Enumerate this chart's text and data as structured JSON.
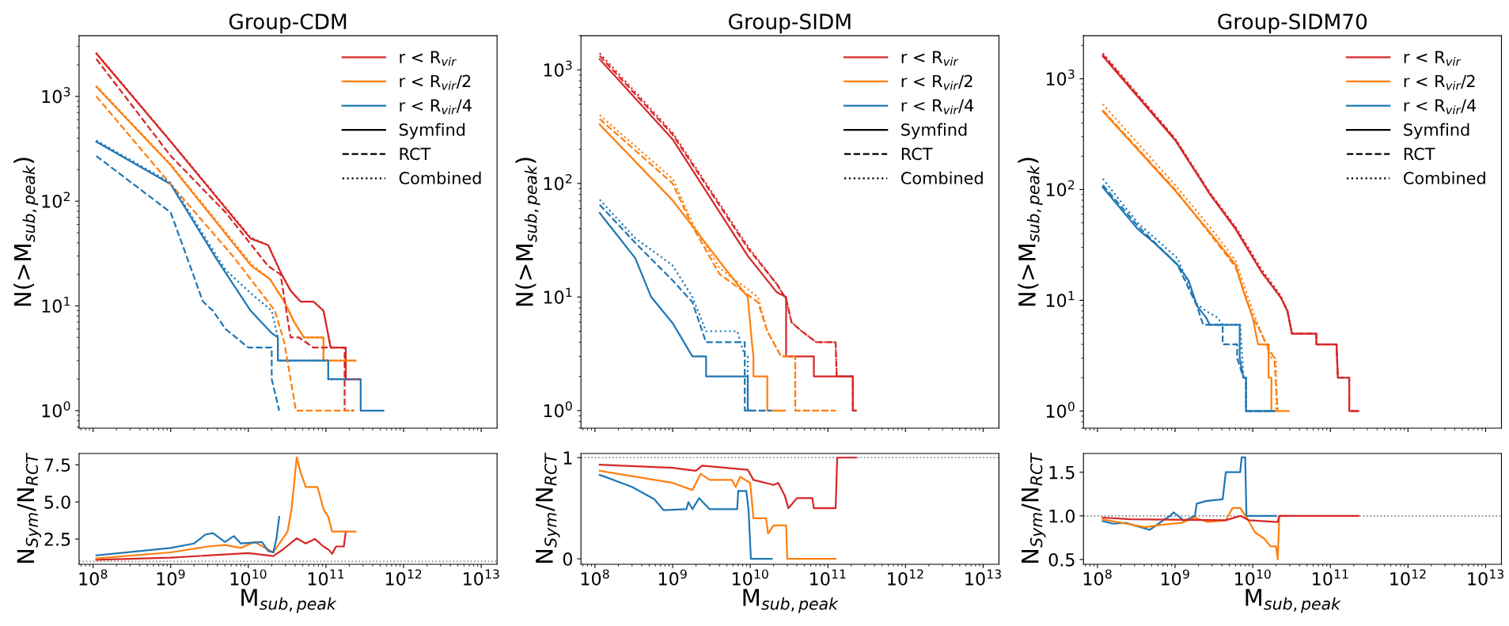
{
  "chart_data": [
    {
      "type": "line",
      "title": "Group-CDM",
      "ylabel": "N(>M$_{sub,peak}$)",
      "log": "xy",
      "legend": "top right",
      "grid": false,
      "tick_labels": "y",
      "xlim": [
        66000000.0,
        16000000000000.0
      ],
      "xticks": [
        {
          "value": 100000000.0,
          "label": null
        },
        {
          "value": 1000000000.0,
          "label": null
        },
        {
          "value": 10000000000.0,
          "label": null
        },
        {
          "value": 100000000000.0,
          "label": null
        },
        {
          "value": 1000000000000.0,
          "label": null
        },
        {
          "value": 10000000000000.0,
          "label": null
        }
      ],
      "ylim": [
        0.68,
        3800
      ],
      "yticks": [
        {
          "value": 1,
          "label": "10$^{0}$"
        },
        {
          "value": 10,
          "label": "10$^{1}$"
        },
        {
          "value": 100,
          "label": "10$^{2}$"
        },
        {
          "value": 1000,
          "label": "10$^{3}$"
        }
      ],
      "series": [
        {
          "name": "r < R$_{vir}$",
          "color": "#d62728",
          "line_style": "solid",
          "x": [
            110000000.0,
            1000000000.0,
            10700000000.0,
            18000000000.0,
            26000000000.0,
            35000000000.0,
            47000000000.0,
            69000000000.0,
            93000000000.0,
            115000000000.0,
            180000000000.0,
            180000000000.0,
            260000000000.0
          ],
          "values": [
            2570,
            370,
            44,
            38,
            21,
            14,
            11,
            11,
            9,
            4,
            4,
            2,
            2
          ]
        },
        {
          "name": "r < R$_{vir}$/2",
          "color": "#ff7f0e",
          "line_style": "solid",
          "x": [
            110000000.0,
            1000000000.0,
            11000000000.0,
            19000000000.0,
            29000000000.0,
            39000000000.0,
            52000000000.0,
            93000000000.0,
            93000000000.0,
            240000000000.0
          ],
          "values": [
            1240,
            220,
            24,
            18,
            11,
            7,
            5,
            5,
            3,
            3
          ]
        },
        {
          "name": "r < R$_{vir}$/4",
          "color": "#1f77b4",
          "line_style": "solid",
          "x": [
            110000000.0,
            1000000000.0,
            3900000000.0,
            10700000000.0,
            20000000000.0,
            24000000000.0,
            24000000000.0,
            107000000000.0,
            107000000000.0,
            280000000000.0,
            280000000000.0,
            550000000000.0
          ],
          "values": [
            370,
            145,
            28,
            9,
            5.5,
            5,
            3,
            3,
            2,
            2,
            1,
            1
          ]
        },
        {
          "name": "Symfind",
          "color": "#000000",
          "line_style": "solid"
        },
        {
          "name": "RCT",
          "color": "#000000",
          "line_style": "dashed"
        },
        {
          "name": "Combined",
          "color": "#000000",
          "line_style": "dotted"
        },
        {
          "color": "#d62728",
          "line_style": "dashed",
          "x": [
            110000000.0,
            1000000000.0,
            5100000000.0,
            18000000000.0,
            26000000000.0,
            29000000000.0,
            35000000000.0,
            45000000000.0,
            69000000000.0,
            174000000000.0,
            174000000000.0,
            230000000000.0
          ],
          "values": [
            2280,
            270,
            78,
            24,
            20,
            12,
            5,
            5,
            4,
            4,
            1,
            1
          ]
        },
        {
          "color": "#d62728",
          "line_style": "dotted",
          "x": [
            110000000.0,
            1000000000.0,
            10700000000.0,
            18000000000.0,
            26000000000.0,
            35000000000.0,
            47000000000.0,
            69000000000.0,
            93000000000.0,
            115000000000.0,
            180000000000.0,
            180000000000.0,
            270000000000.0
          ],
          "values": [
            2600,
            375,
            45,
            38,
            21,
            14,
            11,
            11,
            9,
            4,
            4,
            2,
            2
          ]
        },
        {
          "color": "#ff7f0e",
          "line_style": "dashed",
          "x": [
            110000000.0,
            1000000000.0,
            6300000000.0,
            22000000000.0,
            29000000000.0,
            35000000000.0,
            41000000000.0,
            230000000000.0
          ],
          "values": [
            1000,
            145,
            30,
            9,
            4.5,
            2,
            1,
            1
          ]
        },
        {
          "color": "#ff7f0e",
          "line_style": "dotted",
          "x": [
            110000000.0,
            1000000000.0,
            11000000000.0,
            19000000000.0,
            29000000000.0,
            39000000000.0,
            52000000000.0,
            93000000000.0,
            93000000000.0,
            240000000000.0
          ],
          "values": [
            1260,
            225,
            25,
            18,
            11,
            7,
            5,
            5,
            3,
            3
          ]
        },
        {
          "color": "#1f77b4",
          "line_style": "dashed",
          "x": [
            110000000.0,
            1000000000.0,
            2600000000.0,
            3500000000.0,
            5100000000.0,
            10000000000.0,
            20000000000.0,
            20000000000.0,
            25000000000.0
          ],
          "values": [
            270,
            78,
            11,
            9,
            6,
            4,
            4,
            2,
            1
          ]
        },
        {
          "color": "#1f77b4",
          "line_style": "dotted",
          "x": [
            110000000.0,
            1000000000.0,
            5100000000.0,
            11000000000.0,
            20000000000.0,
            24000000000.0,
            24000000000.0,
            107000000000.0,
            107000000000.0,
            280000000000.0
          ],
          "values": [
            380,
            150,
            22,
            13,
            9,
            5,
            3,
            3,
            2,
            2
          ]
        }
      ]
    },
    {
      "type": "line",
      "title": "Group-SIDM",
      "ylabel": "N(>M$_{sub,peak}$)",
      "log": "xy",
      "legend": "top right",
      "grid": false,
      "tick_labels": "y",
      "xlim": [
        66000000.0,
        16000000000000.0
      ],
      "xticks": [
        {
          "value": 100000000.0,
          "label": null
        },
        {
          "value": 1000000000.0,
          "label": null
        },
        {
          "value": 10000000000.0,
          "label": null
        },
        {
          "value": 100000000000.0,
          "label": null
        },
        {
          "value": 1000000000000.0,
          "label": null
        },
        {
          "value": 10000000000000.0,
          "label": null
        }
      ],
      "ylim": [
        0.7,
        2000
      ],
      "yticks": [
        {
          "value": 1,
          "label": "10$^{0}$"
        },
        {
          "value": 10,
          "label": "10$^{1}$"
        },
        {
          "value": 100,
          "label": "10$^{2}$"
        },
        {
          "value": 1000,
          "label": "10$^{3}$"
        }
      ],
      "series": [
        {
          "name": "r < R$_{vir}$",
          "color": "#d62728",
          "line_style": "solid",
          "x": [
            115000000.0,
            1000000000.0,
            9300000000.0,
            16600000000.0,
            22000000000.0,
            29000000000.0,
            29000000000.0,
            66000000000.0,
            66000000000.0,
            210000000000.0,
            210000000000.0,
            230000000000.0
          ],
          "values": [
            1240,
            245,
            23,
            14,
            11,
            10,
            3,
            3,
            2,
            2,
            1,
            1
          ]
        },
        {
          "name": "r < R$_{vir}$/2",
          "color": "#ff7f0e",
          "line_style": "solid",
          "x": [
            115000000.0,
            1000000000.0,
            5000000000.0,
            9300000000.0,
            10500000000.0,
            11000000000.0,
            11000000000.0,
            16600000000.0,
            16600000000.0,
            28000000000.0
          ],
          "values": [
            330,
            71,
            17,
            10,
            4,
            3,
            2,
            2,
            1,
            1
          ]
        },
        {
          "name": "r < R$_{vir}$/4",
          "color": "#1f77b4",
          "line_style": "solid",
          "x": [
            115000000.0,
            330000000.0,
            530000000.0,
            1000000000.0,
            1800000000.0,
            2700000000.0,
            2700000000.0,
            9300000000.0,
            9300000000.0,
            10000000000.0
          ],
          "values": [
            55,
            22,
            10,
            5.9,
            3,
            3,
            2,
            2,
            1,
            1
          ]
        },
        {
          "name": "Symfind",
          "color": "#000000",
          "line_style": "solid"
        },
        {
          "name": "RCT",
          "color": "#000000",
          "line_style": "dashed"
        },
        {
          "name": "Combined",
          "color": "#000000",
          "line_style": "dotted"
        },
        {
          "color": "#d62728",
          "line_style": "dashed",
          "x": [
            115000000.0,
            1000000000.0,
            9300000000.0,
            22000000000.0,
            29000000000.0,
            34000000000.0,
            46000000000.0,
            71000000000.0,
            126000000000.0,
            130000000000.0,
            210000000000.0,
            210000000000.0,
            230000000000.0
          ],
          "values": [
            1330,
            270,
            27,
            13,
            9.6,
            6,
            5,
            4,
            4,
            2,
            2,
            1,
            1
          ]
        },
        {
          "color": "#d62728",
          "line_style": "dotted",
          "x": [
            115000000.0,
            1000000000.0,
            9300000000.0,
            22000000000.0,
            29000000000.0,
            34000000000.0,
            46000000000.0,
            71000000000.0,
            126000000000.0,
            130000000000.0,
            210000000000.0,
            210000000000.0
          ],
          "values": [
            1400,
            280,
            28,
            13,
            9.6,
            6,
            5,
            4,
            4,
            2,
            2,
            1
          ]
        },
        {
          "color": "#ff7f0e",
          "line_style": "dashed",
          "x": [
            115000000.0,
            1000000000.0,
            1800000000.0,
            4000000000.0,
            12600000000.0,
            16600000000.0,
            25000000000.0,
            38000000000.0,
            38000000000.0,
            126000000000.0
          ],
          "values": [
            370,
            100,
            42,
            16,
            9,
            5,
            3,
            3,
            1,
            1
          ]
        },
        {
          "color": "#ff7f0e",
          "line_style": "dotted",
          "x": [
            115000000.0,
            1000000000.0,
            1800000000.0,
            4000000000.0,
            12600000000.0,
            16600000000.0,
            25000000000.0,
            38000000000.0,
            38000000000.0,
            126000000000.0
          ],
          "values": [
            400,
            110,
            45,
            18,
            10,
            5,
            3,
            3,
            1,
            1
          ]
        },
        {
          "color": "#1f77b4",
          "line_style": "dashed",
          "x": [
            115000000.0,
            330000000.0,
            1000000000.0,
            1800000000.0,
            2200000000.0,
            2700000000.0,
            8500000000.0,
            8500000000.0,
            19000000000.0
          ],
          "values": [
            65,
            30,
            14,
            9,
            6,
            4,
            4,
            1,
            1
          ]
        },
        {
          "color": "#1f77b4",
          "line_style": "dotted",
          "x": [
            115000000.0,
            330000000.0,
            1000000000.0,
            1800000000.0,
            2700000000.0,
            6800000000.0,
            8500000000.0,
            9300000000.0,
            9300000000.0,
            19000000000.0
          ],
          "values": [
            72,
            33,
            19,
            10,
            5,
            5,
            3,
            3,
            1,
            1
          ]
        }
      ]
    },
    {
      "type": "line",
      "title": "Group-SIDM70",
      "ylabel": "N(>M$_{sub,peak}$)",
      "log": "xy",
      "legend": "top right",
      "grid": false,
      "tick_labels": "y",
      "xlim": [
        66000000.0,
        16000000000000.0
      ],
      "xticks": [
        {
          "value": 100000000.0,
          "label": null
        },
        {
          "value": 1000000000.0,
          "label": null
        },
        {
          "value": 10000000000.0,
          "label": null
        },
        {
          "value": 100000000000.0,
          "label": null
        },
        {
          "value": 1000000000000.0,
          "label": null
        },
        {
          "value": 10000000000000.0,
          "label": null
        }
      ],
      "ylim": [
        0.7,
        2450
      ],
      "yticks": [
        {
          "value": 1,
          "label": "10$^{0}$"
        },
        {
          "value": 10,
          "label": "10$^{1}$"
        },
        {
          "value": 100,
          "label": "10$^{2}$"
        },
        {
          "value": 1000,
          "label": "10$^{3}$"
        }
      ],
      "series": [
        {
          "name": "r < R$_{vir}$",
          "color": "#d62728",
          "line_style": "solid",
          "x": [
            117000000.0,
            1000000000.0,
            2800000000.0,
            6000000000.0,
            13000000000.0,
            23000000000.0,
            28000000000.0,
            32000000000.0,
            66000000000.0,
            66000000000.0,
            120000000000.0,
            125000000000.0,
            175000000000.0,
            175000000000.0,
            230000000000.0
          ],
          "values": [
            1600,
            280,
            91,
            44,
            18,
            10.6,
            8,
            5,
            5,
            4,
            4,
            2,
            2,
            1,
            1
          ]
        },
        {
          "name": "r < R$_{vir}$/2",
          "color": "#ff7f0e",
          "line_style": "solid",
          "x": [
            117000000.0,
            1000000000.0,
            2800000000.0,
            6000000000.0,
            7600000000.0,
            10000000000.0,
            11700000000.0,
            16000000000.0,
            16000000000.0,
            17400000000.0,
            17400000000.0,
            29000000000.0
          ],
          "values": [
            510,
            98,
            41,
            21,
            12,
            7,
            4,
            4,
            2,
            2,
            1,
            1
          ]
        },
        {
          "name": "r < R$_{vir}$/4",
          "color": "#1f77b4",
          "line_style": "solid",
          "x": [
            117000000.0,
            330000000.0,
            540000000.0,
            1070000000.0,
            1500000000.0,
            1900000000.0,
            2500000000.0,
            2800000000.0,
            6800000000.0,
            6800000000.0,
            7600000000.0,
            8200000000.0,
            8200000000.0,
            19000000000.0
          ],
          "values": [
            105,
            44,
            33,
            21,
            15,
            9,
            7,
            6,
            6,
            3,
            2,
            2,
            1,
            1
          ]
        },
        {
          "name": "Symfind",
          "color": "#000000",
          "line_style": "solid"
        },
        {
          "name": "RCT",
          "color": "#000000",
          "line_style": "dashed"
        },
        {
          "name": "Combined",
          "color": "#000000",
          "line_style": "dotted"
        },
        {
          "color": "#d62728",
          "line_style": "dashed",
          "x": [
            117000000.0,
            1000000000.0,
            2800000000.0,
            6000000000.0,
            13000000000.0,
            23000000000.0,
            28000000000.0,
            32000000000.0,
            66000000000.0,
            66000000000.0,
            120000000000.0,
            125000000000.0,
            175000000000.0,
            175000000000.0,
            230000000000.0
          ],
          "values": [
            1650,
            285,
            92,
            45,
            18,
            10.6,
            8,
            5,
            5,
            4,
            4,
            2,
            2,
            1,
            1
          ]
        },
        {
          "color": "#d62728",
          "line_style": "dotted",
          "x": [
            117000000.0,
            1000000000.0,
            2800000000.0,
            6000000000.0,
            13000000000.0,
            23000000000.0,
            28000000000.0,
            32000000000.0,
            66000000000.0,
            66000000000.0,
            120000000000.0,
            125000000000.0,
            175000000000.0
          ],
          "values": [
            1700,
            290,
            94,
            46,
            19,
            11,
            8,
            5,
            5,
            4,
            4,
            2,
            2
          ]
        },
        {
          "color": "#ff7f0e",
          "line_style": "dashed",
          "x": [
            117000000.0,
            1000000000.0,
            2800000000.0,
            6000000000.0,
            10000000000.0,
            13000000000.0,
            15000000000.0,
            19000000000.0,
            19000000000.0,
            21000000000.0
          ],
          "values": [
            520,
            100,
            40,
            20,
            7,
            5,
            4,
            3,
            3,
            1
          ]
        },
        {
          "color": "#ff7f0e",
          "line_style": "dotted",
          "x": [
            117000000.0,
            1000000000.0,
            2800000000.0,
            6000000000.0,
            10000000000.0,
            13000000000.0,
            17400000000.0,
            20000000000.0,
            20000000000.0
          ],
          "values": [
            590,
            110,
            46,
            23,
            8,
            5,
            3,
            3,
            1
          ]
        },
        {
          "color": "#1f77b4",
          "line_style": "dashed",
          "x": [
            117000000.0,
            330000000.0,
            1070000000.0,
            1900000000.0,
            2300000000.0,
            4100000000.0,
            4100000000.0,
            6300000000.0,
            6300000000.0,
            7600000000.0,
            8200000000.0,
            8200000000.0,
            19000000000.0
          ],
          "values": [
            110,
            47,
            21,
            9,
            6,
            6,
            4,
            4,
            3,
            2,
            2,
            1,
            1
          ]
        },
        {
          "color": "#1f77b4",
          "line_style": "dotted",
          "x": [
            117000000.0,
            330000000.0,
            1070000000.0,
            1900000000.0,
            2500000000.0,
            3500000000.0,
            4100000000.0,
            6900000000.0,
            7600000000.0,
            8200000000.0,
            8200000000.0,
            19000000000.0
          ],
          "values": [
            125,
            50,
            24,
            9.3,
            8,
            7,
            6,
            6,
            2,
            2,
            1,
            1
          ]
        }
      ]
    },
    {
      "type": "line",
      "xlabel": "M$_{sub,peak}$",
      "ylabel": "N$_{Sym}$/N$_{RCT}$",
      "log": "x",
      "legend": false,
      "grid": false,
      "xlim": [
        66000000.0,
        16000000000000.0
      ],
      "xticks": [
        {
          "value": 100000000.0,
          "label": "10$^{8}$"
        },
        {
          "value": 1000000000.0,
          "label": "10$^{9}$"
        },
        {
          "value": 10000000000.0,
          "label": "10$^{10}$"
        },
        {
          "value": 100000000000.0,
          "label": "10$^{11}$"
        },
        {
          "value": 1000000000000.0,
          "label": "10$^{12}$"
        },
        {
          "value": 10000000000000.0,
          "label": "10$^{13}$"
        }
      ],
      "ylim": [
        0.8,
        8.26
      ],
      "yticks": [
        {
          "value": 2.5,
          "label": "2.5"
        },
        {
          "value": 5.0,
          "label": "5.0"
        },
        {
          "value": 7.5,
          "label": "7.5"
        }
      ],
      "ref_lines": [
        {
          "axis": "y",
          "value": 1,
          "color": "#808080",
          "line_style": "dotted"
        }
      ],
      "series": [
        {
          "color": "#d62728",
          "x": [
            110000000.0,
            1000000000.0,
            10000000000.0,
            21000000000.0,
            28000000000.0,
            42000000000.0,
            55000000000.0,
            72000000000.0,
            93000000000.0,
            110000000000.0,
            120000000000.0,
            135000000000.0,
            170000000000.0,
            180000000000.0
          ],
          "values": [
            1.1,
            1.25,
            1.55,
            1.35,
            1.8,
            2.55,
            2.2,
            2.5,
            2.0,
            1.75,
            1.5,
            2.0,
            2.0,
            3.0
          ]
        },
        {
          "color": "#ff7f0e",
          "x": [
            110000000.0,
            1000000000.0,
            3000000000.0,
            5000000000.0,
            8000000000.0,
            12000000000.0,
            21000000000.0,
            32000000000.0,
            36000000000.0,
            42000000000.0,
            47000000000.0,
            55000000000.0,
            78000000000.0,
            93000000000.0,
            107000000000.0,
            120000000000.0,
            240000000000.0
          ],
          "values": [
            1.2,
            1.6,
            2.0,
            2.1,
            1.9,
            2.3,
            1.6,
            3.0,
            4.5,
            8.0,
            7.0,
            6.0,
            6.0,
            4.5,
            4.0,
            3.0,
            3.0
          ]
        },
        {
          "color": "#1f77b4",
          "x": [
            110000000.0,
            1000000000.0,
            2000000000.0,
            2800000000.0,
            3500000000.0,
            5000000000.0,
            6500000000.0,
            8000000000.0,
            15000000000.0,
            18000000000.0,
            21000000000.0,
            23000000000.0,
            25000000000.0
          ],
          "values": [
            1.4,
            1.9,
            2.2,
            2.8,
            2.9,
            2.3,
            2.7,
            2.2,
            2.3,
            1.7,
            1.6,
            2.5,
            4.0
          ]
        }
      ]
    },
    {
      "type": "line",
      "xlabel": "M$_{sub,peak}$",
      "ylabel": "N$_{Sym}$/N$_{RCT}$",
      "log": "x",
      "legend": false,
      "grid": false,
      "xlim": [
        66000000.0,
        16000000000000.0
      ],
      "xticks": [
        {
          "value": 100000000.0,
          "label": "10$^{8}$"
        },
        {
          "value": 1000000000.0,
          "label": "10$^{9}$"
        },
        {
          "value": 10000000000.0,
          "label": "10$^{10}$"
        },
        {
          "value": 100000000000.0,
          "label": "10$^{11}$"
        },
        {
          "value": 1000000000000.0,
          "label": "10$^{12}$"
        },
        {
          "value": 10000000000000.0,
          "label": "10$^{13}$"
        }
      ],
      "ylim": [
        -0.054,
        1.041
      ],
      "yticks": [
        0,
        1
      ],
      "ref_lines": [
        {
          "axis": "y",
          "value": 1,
          "color": "#808080",
          "line_style": "dotted"
        }
      ],
      "series": [
        {
          "color": "#d62728",
          "x": [
            115000000.0,
            1000000000.0,
            2000000000.0,
            2400000000.0,
            9300000000.0,
            11000000000.0,
            20000000000.0,
            23000000000.0,
            28000000000.0,
            31000000000.0,
            40000000000.0,
            63000000000.0,
            66000000000.0,
            126000000000.0,
            132000000000.0,
            230000000000.0
          ],
          "values": [
            0.93,
            0.9,
            0.87,
            0.92,
            0.88,
            0.78,
            0.73,
            0.75,
            0.62,
            0.5,
            0.6,
            0.6,
            0.5,
            0.5,
            1.0,
            1.0
          ]
        },
        {
          "color": "#ff7f0e",
          "x": [
            115000000.0,
            1000000000.0,
            1800000000.0,
            2300000000.0,
            3000000000.0,
            5800000000.0,
            6500000000.0,
            7400000000.0,
            10000000000.0,
            11000000000.0,
            16000000000.0,
            17000000000.0,
            20000000000.0,
            29000000000.0,
            30000000000.0,
            126000000000.0
          ],
          "values": [
            0.87,
            0.75,
            0.68,
            0.84,
            0.78,
            0.78,
            0.71,
            0.81,
            0.75,
            0.4,
            0.4,
            0.25,
            0.33,
            0.33,
            0.0,
            0.0
          ]
        },
        {
          "color": "#1f77b4",
          "x": [
            115000000.0,
            220000000.0,
            300000000.0,
            580000000.0,
            770000000.0,
            1500000000.0,
            1600000000.0,
            1800000000.0,
            2200000000.0,
            3000000000.0,
            6800000000.0,
            7000000000.0,
            8900000000.0,
            9500000000.0,
            10200000000.0,
            19000000000.0
          ],
          "values": [
            0.83,
            0.75,
            0.71,
            0.59,
            0.48,
            0.49,
            0.56,
            0.49,
            0.6,
            0.49,
            0.49,
            0.67,
            0.67,
            0.49,
            0.0,
            0.0
          ]
        }
      ]
    },
    {
      "type": "line",
      "xlabel": "M$_{sub,peak}$",
      "ylabel": "N$_{Sym}$/N$_{RCT}$",
      "log": "x",
      "legend": false,
      "grid": false,
      "xlim": [
        66000000.0,
        16000000000000.0
      ],
      "xticks": [
        {
          "value": 100000000.0,
          "label": "10$^{8}$"
        },
        {
          "value": 1000000000.0,
          "label": "10$^{9}$"
        },
        {
          "value": 10000000000.0,
          "label": "10$^{10}$"
        },
        {
          "value": 100000000000.0,
          "label": "10$^{11}$"
        },
        {
          "value": 1000000000000.0,
          "label": "10$^{12}$"
        },
        {
          "value": 10000000000000.0,
          "label": "10$^{13}$"
        }
      ],
      "ylim": [
        0.445,
        1.715
      ],
      "yticks": [
        {
          "value": 0.5,
          "label": "0.5"
        },
        {
          "value": 1.0,
          "label": "1.0"
        },
        {
          "value": 1.5,
          "label": "1.5"
        }
      ],
      "ref_lines": [
        {
          "axis": "y",
          "value": 1,
          "color": "#808080",
          "line_style": "dotted"
        }
      ],
      "series": [
        {
          "color": "#1f77b4",
          "x": [
            117000000.0,
            160000000.0,
            230000000.0,
            470000000.0,
            660000000.0,
            730000000.0,
            870000000.0,
            950000000.0,
            1100000000.0,
            1300000000.0,
            1800000000.0,
            1900000000.0,
            2500000000.0,
            4100000000.0,
            4500000000.0,
            6900000000.0,
            7200000000.0,
            8000000000.0,
            8300000000.0,
            20000000000.0
          ],
          "values": [
            0.94,
            0.91,
            0.92,
            0.84,
            0.93,
            0.96,
            1.0,
            1.04,
            1.0,
            0.94,
            1.0,
            1.14,
            1.17,
            1.19,
            1.5,
            1.5,
            1.67,
            1.67,
            1.0,
            1.0
          ]
        },
        {
          "color": "#ff7f0e",
          "x": [
            117000000.0,
            410000000.0,
            700000000.0,
            1200000000.0,
            1800000000.0,
            2600000000.0,
            4500000000.0,
            5500000000.0,
            6900000000.0,
            8900000000.0,
            10700000000.0,
            14000000000.0,
            17000000000.0,
            20000000000.0,
            21000000000.0,
            22000000000.0,
            30000000000.0
          ],
          "values": [
            0.96,
            0.87,
            0.9,
            0.92,
            0.98,
            0.93,
            0.95,
            1.09,
            1.09,
            0.94,
            0.81,
            0.74,
            0.65,
            0.65,
            0.5,
            1.0,
            1.0
          ]
        },
        {
          "color": "#d62728",
          "x": [
            117000000.0,
            270000000.0,
            4500000000.0,
            6900000000.0,
            8900000000.0,
            21000000000.0,
            22000000000.0,
            230000000000.0
          ],
          "values": [
            0.98,
            0.96,
            0.95,
            1.0,
            0.95,
            0.93,
            1.0,
            1.0
          ]
        }
      ]
    }
  ]
}
